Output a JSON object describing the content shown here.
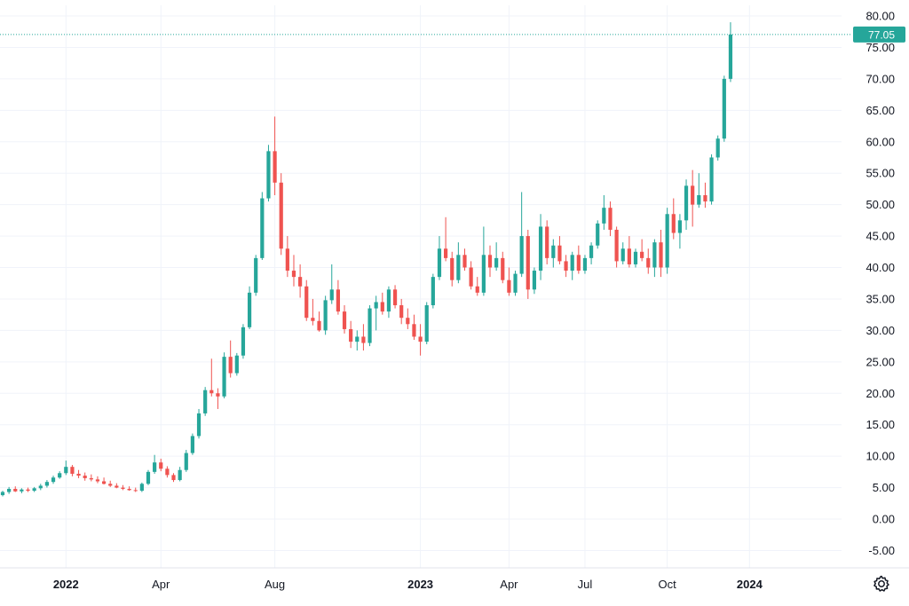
{
  "chart_data": {
    "type": "candlestick",
    "y_ticks": [
      "80.00",
      "75.00",
      "70.00",
      "65.00",
      "60.00",
      "55.00",
      "50.00",
      "45.00",
      "40.00",
      "35.00",
      "30.00",
      "25.00",
      "20.00",
      "15.00",
      "10.00",
      "5.00",
      "0.00",
      "-5.00"
    ],
    "y_tick_values": [
      80,
      75,
      70,
      65,
      60,
      55,
      50,
      45,
      40,
      35,
      30,
      25,
      20,
      15,
      10,
      5,
      0,
      -5
    ],
    "ylim": [
      -7,
      82
    ],
    "x_ticks": [
      {
        "label": "2022",
        "bold": true
      },
      {
        "label": "Apr",
        "bold": false
      },
      {
        "label": "Aug",
        "bold": false
      },
      {
        "label": "2023",
        "bold": true
      },
      {
        "label": "Apr",
        "bold": false
      },
      {
        "label": "Jul",
        "bold": false
      },
      {
        "label": "Oct",
        "bold": false
      },
      {
        "label": "2024",
        "bold": true
      }
    ],
    "x_tick_indices": [
      10,
      25,
      43,
      66,
      80,
      92,
      105,
      118
    ],
    "current_price": 77.05,
    "current_price_label": "77.05",
    "up_color": "#26a69a",
    "down_color": "#ef5350",
    "grid": true,
    "candles": [
      [
        3.8,
        4.5,
        3.6,
        4.3
      ],
      [
        4.3,
        5.1,
        4.0,
        4.8
      ],
      [
        4.8,
        5.2,
        4.3,
        4.4
      ],
      [
        4.4,
        4.9,
        4.1,
        4.7
      ],
      [
        4.7,
        5.0,
        4.3,
        4.5
      ],
      [
        4.5,
        5.1,
        4.3,
        4.9
      ],
      [
        4.9,
        5.6,
        4.6,
        5.3
      ],
      [
        5.3,
        6.2,
        5.0,
        5.9
      ],
      [
        5.9,
        6.9,
        5.6,
        6.6
      ],
      [
        6.6,
        7.6,
        6.4,
        7.3
      ],
      [
        7.3,
        9.3,
        7.0,
        8.3
      ],
      [
        8.3,
        8.6,
        6.8,
        7.2
      ],
      [
        7.2,
        7.8,
        6.5,
        6.9
      ],
      [
        6.9,
        7.4,
        6.1,
        6.5
      ],
      [
        6.5,
        7.1,
        6.0,
        6.3
      ],
      [
        6.3,
        6.8,
        5.7,
        6.0
      ],
      [
        6.0,
        6.6,
        5.5,
        5.6
      ],
      [
        5.6,
        6.1,
        5.1,
        5.3
      ],
      [
        5.3,
        5.7,
        4.9,
        5.0
      ],
      [
        5.0,
        5.4,
        4.6,
        4.8
      ],
      [
        4.8,
        5.2,
        4.5,
        4.6
      ],
      [
        4.6,
        5.0,
        4.3,
        4.5
      ],
      [
        4.5,
        5.8,
        4.3,
        5.6
      ],
      [
        5.6,
        7.8,
        5.4,
        7.5
      ],
      [
        7.5,
        10.2,
        7.2,
        9.0
      ],
      [
        9.0,
        9.6,
        7.6,
        8.0
      ],
      [
        8.0,
        8.4,
        6.6,
        7.0
      ],
      [
        7.0,
        7.3,
        5.9,
        6.2
      ],
      [
        6.2,
        8.3,
        6.0,
        7.8
      ],
      [
        7.8,
        11.0,
        7.5,
        10.5
      ],
      [
        10.5,
        13.6,
        10.2,
        13.2
      ],
      [
        13.2,
        17.5,
        12.8,
        16.8
      ],
      [
        16.8,
        21.0,
        16.4,
        20.5
      ],
      [
        20.5,
        25.5,
        19.5,
        20.0
      ],
      [
        20.0,
        20.8,
        17.5,
        19.5
      ],
      [
        19.5,
        26.5,
        19.2,
        25.8
      ],
      [
        25.8,
        28.4,
        22.5,
        23.2
      ],
      [
        23.2,
        26.4,
        22.8,
        26.0
      ],
      [
        26.0,
        31.0,
        25.5,
        30.5
      ],
      [
        30.5,
        37.0,
        30.2,
        36.0
      ],
      [
        36.0,
        42.0,
        35.5,
        41.5
      ],
      [
        41.5,
        52.0,
        41.2,
        51.0
      ],
      [
        51.0,
        59.5,
        50.5,
        58.5
      ],
      [
        58.5,
        64.0,
        51.5,
        53.5
      ],
      [
        53.5,
        55.0,
        42.0,
        43.0
      ],
      [
        43.0,
        45.0,
        38.5,
        39.5
      ],
      [
        39.5,
        42.0,
        37.0,
        38.5
      ],
      [
        38.5,
        40.5,
        35.2,
        37.0
      ],
      [
        37.0,
        38.0,
        31.5,
        32.0
      ],
      [
        32.0,
        35.0,
        30.8,
        31.5
      ],
      [
        31.5,
        33.0,
        29.8,
        30.0
      ],
      [
        30.0,
        35.5,
        29.3,
        34.8
      ],
      [
        34.8,
        40.5,
        34.2,
        36.5
      ],
      [
        36.5,
        38.0,
        32.5,
        33.0
      ],
      [
        33.0,
        34.0,
        29.5,
        30.2
      ],
      [
        30.2,
        31.5,
        27.2,
        28.2
      ],
      [
        28.2,
        30.0,
        26.8,
        29.0
      ],
      [
        29.0,
        31.0,
        26.8,
        28.0
      ],
      [
        28.0,
        34.0,
        27.5,
        33.5
      ],
      [
        33.5,
        35.5,
        30.0,
        34.5
      ],
      [
        34.5,
        36.0,
        32.5,
        33.0
      ],
      [
        33.0,
        37.0,
        32.0,
        36.5
      ],
      [
        36.5,
        37.2,
        33.5,
        34.0
      ],
      [
        34.0,
        35.0,
        31.0,
        32.0
      ],
      [
        32.0,
        33.5,
        30.2,
        31.0
      ],
      [
        31.0,
        32.5,
        28.5,
        29.0
      ],
      [
        29.0,
        31.0,
        26.0,
        28.2
      ],
      [
        28.2,
        34.5,
        27.8,
        34.0
      ],
      [
        34.0,
        39.0,
        33.5,
        38.5
      ],
      [
        38.5,
        45.0,
        38.0,
        43.0
      ],
      [
        43.0,
        48.0,
        41.0,
        41.5
      ],
      [
        41.5,
        42.5,
        37.0,
        38.0
      ],
      [
        38.0,
        44.0,
        37.5,
        42.0
      ],
      [
        42.0,
        43.0,
        39.5,
        40.0
      ],
      [
        40.0,
        41.0,
        36.5,
        37.0
      ],
      [
        37.0,
        38.5,
        35.5,
        36.0
      ],
      [
        36.0,
        46.5,
        35.5,
        42.0
      ],
      [
        42.0,
        43.5,
        38.5,
        40.0
      ],
      [
        40.0,
        44.0,
        39.5,
        41.5
      ],
      [
        41.5,
        42.5,
        37.5,
        38.0
      ],
      [
        38.0,
        40.0,
        35.5,
        36.0
      ],
      [
        36.0,
        39.5,
        35.5,
        39.0
      ],
      [
        39.0,
        52.0,
        38.5,
        45.0
      ],
      [
        45.0,
        46.0,
        35.0,
        36.5
      ],
      [
        36.5,
        40.0,
        35.8,
        39.5
      ],
      [
        39.5,
        48.5,
        38.0,
        46.5
      ],
      [
        46.5,
        47.5,
        40.5,
        41.5
      ],
      [
        41.5,
        44.5,
        40.0,
        43.5
      ],
      [
        43.5,
        45.0,
        40.5,
        41.0
      ],
      [
        41.0,
        42.0,
        38.5,
        39.5
      ],
      [
        39.5,
        42.5,
        38.0,
        42.0
      ],
      [
        42.0,
        43.5,
        39.0,
        39.5
      ],
      [
        39.5,
        42.0,
        39.0,
        41.5
      ],
      [
        41.5,
        44.0,
        40.5,
        43.5
      ],
      [
        43.5,
        47.5,
        43.0,
        47.0
      ],
      [
        47.0,
        51.5,
        46.0,
        49.5
      ],
      [
        49.5,
        50.5,
        45.0,
        46.0
      ],
      [
        46.0,
        46.5,
        40.0,
        41.0
      ],
      [
        41.0,
        44.0,
        40.5,
        43.0
      ],
      [
        43.0,
        45.0,
        40.0,
        40.5
      ],
      [
        40.5,
        43.0,
        40.0,
        42.5
      ],
      [
        42.5,
        44.5,
        41.0,
        41.5
      ],
      [
        41.5,
        43.0,
        39.0,
        40.0
      ],
      [
        40.0,
        44.5,
        38.5,
        44.0
      ],
      [
        44.0,
        46.0,
        38.5,
        40.0
      ],
      [
        40.0,
        49.5,
        39.0,
        48.5
      ],
      [
        48.5,
        51.0,
        44.5,
        45.5
      ],
      [
        45.5,
        48.5,
        43.0,
        47.5
      ],
      [
        47.5,
        54.0,
        46.0,
        53.0
      ],
      [
        53.0,
        55.5,
        46.5,
        50.0
      ],
      [
        50.0,
        55.0,
        49.5,
        51.5
      ],
      [
        51.5,
        53.5,
        49.5,
        50.5
      ],
      [
        50.5,
        58.0,
        50.0,
        57.5
      ],
      [
        57.5,
        61.0,
        57.0,
        60.5
      ],
      [
        60.5,
        70.5,
        60.0,
        70.0
      ],
      [
        70.0,
        79.0,
        69.5,
        77.05
      ]
    ]
  }
}
